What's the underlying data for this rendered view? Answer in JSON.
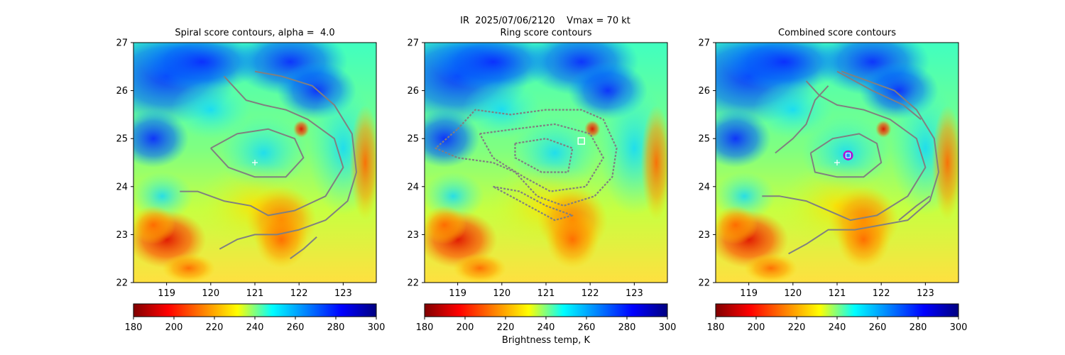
{
  "figure": {
    "suptitle": "IR  2025/07/06/2120    Vmax = 70 kt",
    "colorbar_label": "Brightness temp, K",
    "colormap_name": "jet_r",
    "colormap_stops": [
      "#800000",
      "#ff0000",
      "#ff8000",
      "#ffff00",
      "#00ffff",
      "#0080ff",
      "#0000ff",
      "#000080"
    ],
    "contour_color": "#808080",
    "marker_colors": {
      "storm_center": "#ffffff",
      "ring_fix": "#ffffff",
      "combined_fix_outer": "#cc00cc",
      "combined_fix_inner": "#1e90ff"
    }
  },
  "chart_data": [
    {
      "type": "heatmap",
      "title": "Spiral score contours, alpha =  4.0",
      "xlim": [
        118.25,
        123.75
      ],
      "ylim": [
        22,
        27
      ],
      "xticks": [
        "119",
        "120",
        "121",
        "122",
        "123"
      ],
      "yticks": [
        "22",
        "23",
        "24",
        "25",
        "26",
        "27"
      ],
      "colorbar": {
        "min": 180,
        "max": 300,
        "ticks": [
          "180",
          "200",
          "220",
          "240",
          "260",
          "280",
          "300"
        ]
      },
      "storm_center": [
        121.0,
        24.5
      ],
      "contours": [
        [
          [
            120.3,
            26.3
          ],
          [
            120.5,
            26.1
          ],
          [
            120.8,
            25.8
          ],
          [
            121.2,
            25.7
          ],
          [
            121.7,
            25.6
          ],
          [
            122.2,
            25.4
          ],
          [
            122.8,
            25.0
          ],
          [
            123.0,
            24.4
          ],
          [
            122.6,
            23.8
          ],
          [
            121.9,
            23.5
          ],
          [
            121.3,
            23.4
          ],
          [
            120.9,
            23.6
          ],
          [
            120.3,
            23.7
          ],
          [
            119.7,
            23.9
          ],
          [
            119.3,
            23.9
          ]
        ],
        [
          [
            121.0,
            26.4
          ],
          [
            121.6,
            26.3
          ],
          [
            122.3,
            26.1
          ],
          [
            122.8,
            25.7
          ],
          [
            123.2,
            25.1
          ],
          [
            123.3,
            24.3
          ],
          [
            123.1,
            23.7
          ],
          [
            122.6,
            23.3
          ],
          [
            122.0,
            23.1
          ],
          [
            121.5,
            23.0
          ],
          [
            121.0,
            23.0
          ],
          [
            120.6,
            22.9
          ],
          [
            120.2,
            22.7
          ]
        ],
        [
          [
            120.0,
            24.8
          ],
          [
            120.6,
            25.1
          ],
          [
            121.3,
            25.2
          ],
          [
            121.9,
            25.0
          ],
          [
            122.1,
            24.6
          ],
          [
            121.7,
            24.2
          ],
          [
            121.0,
            24.2
          ],
          [
            120.4,
            24.4
          ],
          [
            120.0,
            24.8
          ]
        ],
        [
          [
            121.8,
            22.5
          ],
          [
            122.1,
            22.7
          ],
          [
            122.4,
            22.95
          ]
        ]
      ]
    },
    {
      "type": "heatmap",
      "title": "Ring score contours",
      "xlim": [
        118.25,
        123.75
      ],
      "ylim": [
        22,
        27
      ],
      "xticks": [
        "119",
        "120",
        "121",
        "122",
        "123"
      ],
      "yticks": [
        "22",
        "23",
        "24",
        "25",
        "26",
        "27"
      ],
      "colorbar": {
        "min": 180,
        "max": 300,
        "ticks": [
          "180",
          "200",
          "220",
          "240",
          "260",
          "280",
          "300"
        ]
      },
      "ring_fix": [
        121.8,
        24.95
      ],
      "ring_region_center": [
        121.1,
        24.7
      ],
      "contours": [
        [
          [
            119.0,
            25.2
          ],
          [
            119.4,
            25.6
          ],
          [
            120.2,
            25.5
          ],
          [
            121.0,
            25.6
          ],
          [
            121.8,
            25.6
          ],
          [
            122.3,
            25.4
          ],
          [
            122.6,
            24.8
          ],
          [
            122.5,
            24.2
          ],
          [
            122.1,
            23.8
          ],
          [
            121.4,
            23.6
          ],
          [
            120.8,
            23.8
          ],
          [
            120.3,
            24.3
          ],
          [
            119.8,
            24.5
          ],
          [
            119.0,
            24.6
          ],
          [
            118.5,
            24.8
          ],
          [
            119.0,
            25.2
          ]
        ],
        [
          [
            119.5,
            25.1
          ],
          [
            120.3,
            25.2
          ],
          [
            121.2,
            25.3
          ],
          [
            122.0,
            25.1
          ],
          [
            122.3,
            24.6
          ],
          [
            121.9,
            24.0
          ],
          [
            121.1,
            23.9
          ],
          [
            120.5,
            24.2
          ],
          [
            119.8,
            24.6
          ],
          [
            119.5,
            25.1
          ]
        ],
        [
          [
            120.3,
            24.9
          ],
          [
            121.0,
            25.0
          ],
          [
            121.6,
            24.8
          ],
          [
            121.5,
            24.3
          ],
          [
            120.9,
            24.3
          ],
          [
            120.3,
            24.6
          ],
          [
            120.3,
            24.9
          ]
        ],
        [
          [
            119.8,
            24.0
          ],
          [
            120.4,
            23.9
          ],
          [
            121.0,
            23.6
          ],
          [
            121.6,
            23.4
          ],
          [
            121.2,
            23.3
          ],
          [
            120.6,
            23.6
          ],
          [
            119.8,
            24.0
          ]
        ]
      ]
    },
    {
      "type": "heatmap",
      "title": "Combined score contours",
      "xlim": [
        118.25,
        123.75
      ],
      "ylim": [
        22,
        27
      ],
      "xticks": [
        "119",
        "120",
        "121",
        "122",
        "123"
      ],
      "yticks": [
        "22",
        "23",
        "24",
        "25",
        "26",
        "27"
      ],
      "colorbar": {
        "min": 180,
        "max": 300,
        "ticks": [
          "180",
          "200",
          "220",
          "240",
          "260",
          "280",
          "300"
        ]
      },
      "storm_center": [
        121.0,
        24.5
      ],
      "combined_fix": [
        121.25,
        24.65
      ],
      "contours": [
        [
          [
            120.3,
            26.2
          ],
          [
            120.6,
            25.9
          ],
          [
            121.0,
            25.7
          ],
          [
            121.6,
            25.6
          ],
          [
            122.2,
            25.4
          ],
          [
            122.8,
            25.0
          ],
          [
            123.0,
            24.4
          ],
          [
            122.6,
            23.8
          ],
          [
            121.9,
            23.4
          ],
          [
            121.3,
            23.3
          ],
          [
            120.8,
            23.5
          ],
          [
            120.3,
            23.7
          ],
          [
            119.7,
            23.8
          ],
          [
            119.3,
            23.8
          ]
        ],
        [
          [
            121.1,
            26.4
          ],
          [
            121.7,
            26.2
          ],
          [
            122.3,
            26.0
          ],
          [
            122.8,
            25.6
          ],
          [
            123.2,
            25.0
          ],
          [
            123.3,
            24.3
          ],
          [
            123.1,
            23.7
          ],
          [
            122.6,
            23.3
          ],
          [
            122.0,
            23.2
          ],
          [
            121.4,
            23.1
          ],
          [
            120.8,
            23.1
          ],
          [
            120.3,
            22.8
          ],
          [
            119.9,
            22.6
          ]
        ],
        [
          [
            121.0,
            26.4
          ],
          [
            121.8,
            26.0
          ],
          [
            122.5,
            25.7
          ],
          [
            122.9,
            25.4
          ]
        ],
        [
          [
            119.6,
            24.7
          ],
          [
            120.0,
            25.0
          ],
          [
            120.3,
            25.3
          ],
          [
            120.5,
            25.8
          ],
          [
            120.8,
            26.1
          ]
        ],
        [
          [
            120.4,
            24.7
          ],
          [
            120.9,
            25.0
          ],
          [
            121.5,
            25.1
          ],
          [
            121.9,
            24.9
          ],
          [
            122.0,
            24.5
          ],
          [
            121.6,
            24.2
          ],
          [
            121.0,
            24.2
          ],
          [
            120.5,
            24.3
          ],
          [
            120.4,
            24.7
          ]
        ],
        [
          [
            122.4,
            23.3
          ],
          [
            122.8,
            23.6
          ],
          [
            123.1,
            23.8
          ]
        ]
      ]
    }
  ]
}
